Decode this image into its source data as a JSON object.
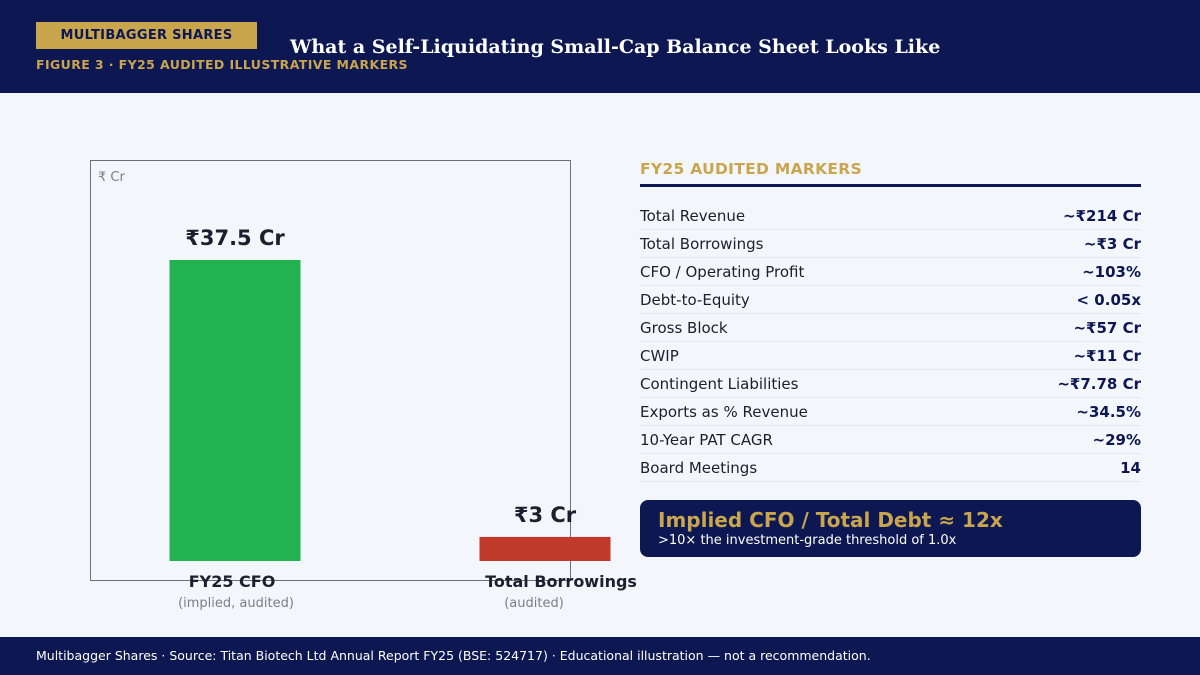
{
  "header": {
    "brand": "MULTIBAGGER SHARES",
    "title": "What a Self-Liquidating Small-Cap Balance Sheet Looks Like",
    "figure_label": "FIGURE 3 · FY25 AUDITED ILLUSTRATIVE MARKERS"
  },
  "chart_data": {
    "type": "bar",
    "unit_label": "₹ Cr",
    "categories": [
      "FY25 CFO",
      "Total Borrowings"
    ],
    "subcategories": [
      "(implied, audited)",
      "(audited)"
    ],
    "values": [
      37.5,
      3
    ],
    "value_labels": [
      "₹37.5 Cr",
      "₹3 Cr"
    ],
    "colors": [
      "#22b350",
      "#c0392b"
    ],
    "ylim": [
      0,
      37.5
    ]
  },
  "markers": {
    "title": "FY25 AUDITED MARKERS",
    "rows": [
      {
        "label": "Total Revenue",
        "value": "~₹214 Cr"
      },
      {
        "label": "Total Borrowings",
        "value": "~₹3 Cr"
      },
      {
        "label": "CFO / Operating Profit",
        "value": "~103%"
      },
      {
        "label": "Debt-to-Equity",
        "value": "< 0.05x"
      },
      {
        "label": "Gross Block",
        "value": "~₹57 Cr"
      },
      {
        "label": "CWIP",
        "value": "~₹11 Cr"
      },
      {
        "label": "Contingent Liabilities",
        "value": "~₹7.78 Cr"
      },
      {
        "label": "Exports as % Revenue",
        "value": "~34.5%"
      },
      {
        "label": "10-Year PAT CAGR",
        "value": "~29%"
      },
      {
        "label": "Board Meetings",
        "value": "14"
      }
    ]
  },
  "callout": {
    "main": "Implied CFO / Total Debt ≈ 12x",
    "sub": ">10× the investment-grade threshold of 1.0x"
  },
  "footer": {
    "text": "Multibagger Shares · Source: Titan Biotech Ltd Annual Report FY25 (BSE: 524717) · Educational illustration — not a recommendation."
  }
}
